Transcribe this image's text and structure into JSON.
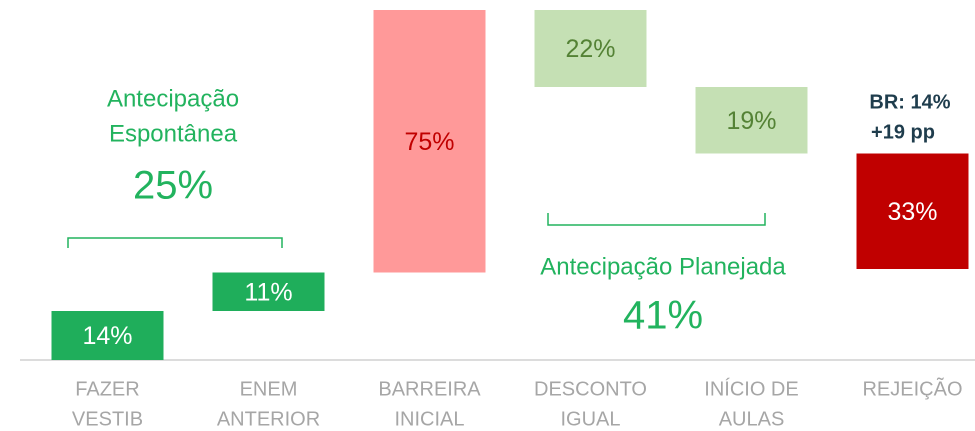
{
  "chart_data": {
    "type": "waterfall",
    "categories": [
      [
        "FAZER",
        "VESTIB"
      ],
      [
        "ENEM",
        "ANTERIOR"
      ],
      [
        "BARREIRA",
        "INICIAL"
      ],
      [
        "DESCONTO",
        "IGUAL"
      ],
      [
        "INÍCIO DE",
        "AULAS"
      ],
      [
        "REJEIÇÃO"
      ]
    ],
    "values": [
      14,
      11,
      75,
      22,
      19,
      33
    ],
    "value_labels": [
      "14%",
      "11%",
      "75%",
      "22%",
      "19%",
      "33%"
    ],
    "measure": [
      "up",
      "up",
      "up",
      "down",
      "down",
      "down"
    ],
    "colors": [
      "#1fae5b",
      "#1fae5b",
      "#ff9999",
      "#c5e0b4",
      "#c5e0b4",
      "#c00000"
    ],
    "label_colors": [
      "#ffffff",
      "#ffffff",
      "#c00000",
      "#548235",
      "#548235",
      "#ffffff"
    ],
    "ylim": [
      0,
      100
    ],
    "annotations": [
      "Antecipação",
      "Espontânea",
      "25%",
      "Antecipação Planejada",
      "41%",
      "BR: 14%",
      "+19 pp"
    ]
  }
}
